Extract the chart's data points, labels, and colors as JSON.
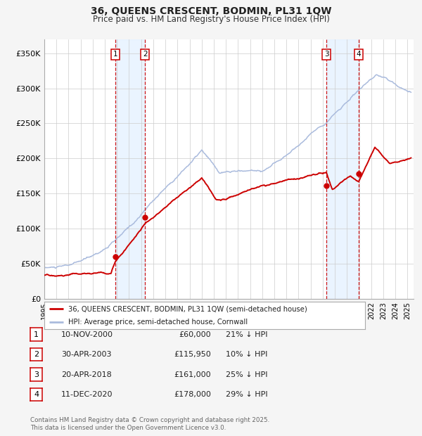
{
  "title": "36, QUEENS CRESCENT, BODMIN, PL31 1QW",
  "subtitle": "Price paid vs. HM Land Registry's House Price Index (HPI)",
  "ylim": [
    0,
    370000
  ],
  "yticks": [
    0,
    50000,
    100000,
    150000,
    200000,
    250000,
    300000,
    350000
  ],
  "ytick_labels": [
    "£0",
    "£50K",
    "£100K",
    "£150K",
    "£200K",
    "£250K",
    "£300K",
    "£350K"
  ],
  "background_color": "#f5f5f5",
  "plot_bg_color": "#ffffff",
  "grid_color": "#cccccc",
  "hpi_line_color": "#aabbdd",
  "price_line_color": "#cc0000",
  "sale_marker_color": "#cc0000",
  "vline_color": "#cc0000",
  "shade_color": "#ddeeff",
  "transactions": [
    {
      "num": 1,
      "date_str": "10-NOV-2000",
      "date_x": 2000.86,
      "price": 60000,
      "hpi_pct": "21% ↓ HPI"
    },
    {
      "num": 2,
      "date_str": "30-APR-2003",
      "date_x": 2003.33,
      "price": 115950,
      "hpi_pct": "10% ↓ HPI"
    },
    {
      "num": 3,
      "date_str": "20-APR-2018",
      "date_x": 2018.3,
      "price": 161000,
      "hpi_pct": "25% ↓ HPI"
    },
    {
      "num": 4,
      "date_str": "11-DEC-2020",
      "date_x": 2020.95,
      "price": 178000,
      "hpi_pct": "29% ↓ HPI"
    }
  ],
  "legend_line1": "36, QUEENS CRESCENT, BODMIN, PL31 1QW (semi-detached house)",
  "legend_line2": "HPI: Average price, semi-detached house, Cornwall",
  "footnote": "Contains HM Land Registry data © Crown copyright and database right 2025.\nThis data is licensed under the Open Government Licence v3.0.",
  "xmin": 1995.0,
  "xmax": 2025.5
}
